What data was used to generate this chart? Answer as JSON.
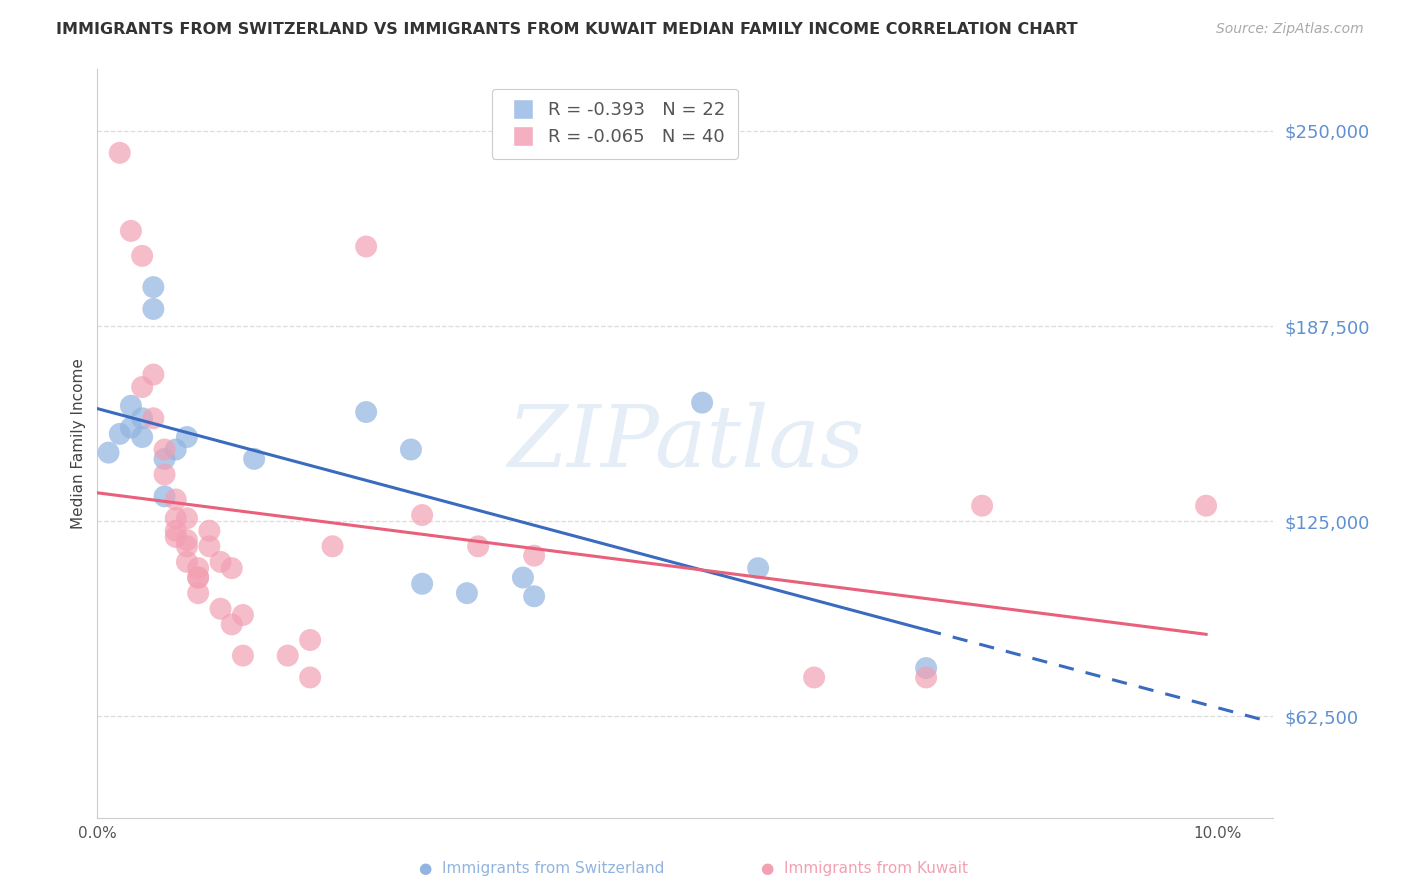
{
  "title": "IMMIGRANTS FROM SWITZERLAND VS IMMIGRANTS FROM KUWAIT MEDIAN FAMILY INCOME CORRELATION CHART",
  "source": "Source: ZipAtlas.com",
  "ylabel": "Median Family Income",
  "xlim": [
    0.0,
    0.105
  ],
  "ylim": [
    30000,
    270000
  ],
  "ytick_positions": [
    62500,
    125000,
    187500,
    250000
  ],
  "ytick_labels": [
    "$62,500",
    "$125,000",
    "$187,500",
    "$250,000"
  ],
  "xtick_positions": [
    0.0,
    0.02,
    0.04,
    0.06,
    0.08,
    0.1
  ],
  "xtick_labels": [
    "0.0%",
    "",
    "",
    "",
    "",
    "10.0%"
  ],
  "switzerland_color": "#92b4e0",
  "kuwait_color": "#f2a0b2",
  "trendline_switzerland_color": "#3a6bbf",
  "trendline_kuwait_color": "#e8607a",
  "watermark": "ZIPatlas",
  "background_color": "#ffffff",
  "grid_color": "#dddddd",
  "ytick_label_color": "#6090d0",
  "legend_sw_color": "#a8c4e8",
  "legend_kw_color": "#f4afc0",
  "legend_sw_label": "R = -0.393   N = 22",
  "legend_kw_label": "R = -0.065   N = 40",
  "bottom_legend_sw": "Immigrants from Switzerland",
  "bottom_legend_kw": "Immigrants from Kuwait",
  "switzerland_points": [
    [
      0.001,
      147000
    ],
    [
      0.002,
      153000
    ],
    [
      0.003,
      155000
    ],
    [
      0.003,
      162000
    ],
    [
      0.004,
      152000
    ],
    [
      0.004,
      158000
    ],
    [
      0.005,
      200000
    ],
    [
      0.005,
      193000
    ],
    [
      0.006,
      145000
    ],
    [
      0.006,
      133000
    ],
    [
      0.007,
      148000
    ],
    [
      0.008,
      152000
    ],
    [
      0.014,
      145000
    ],
    [
      0.024,
      160000
    ],
    [
      0.028,
      148000
    ],
    [
      0.029,
      105000
    ],
    [
      0.033,
      102000
    ],
    [
      0.038,
      107000
    ],
    [
      0.039,
      101000
    ],
    [
      0.054,
      163000
    ],
    [
      0.059,
      110000
    ],
    [
      0.074,
      78000
    ]
  ],
  "kuwait_points": [
    [
      0.002,
      243000
    ],
    [
      0.003,
      218000
    ],
    [
      0.004,
      210000
    ],
    [
      0.004,
      168000
    ],
    [
      0.005,
      172000
    ],
    [
      0.005,
      158000
    ],
    [
      0.006,
      148000
    ],
    [
      0.006,
      140000
    ],
    [
      0.007,
      132000
    ],
    [
      0.007,
      126000
    ],
    [
      0.007,
      122000
    ],
    [
      0.007,
      120000
    ],
    [
      0.008,
      126000
    ],
    [
      0.008,
      119000
    ],
    [
      0.008,
      117000
    ],
    [
      0.008,
      112000
    ],
    [
      0.009,
      110000
    ],
    [
      0.009,
      107000
    ],
    [
      0.009,
      107000
    ],
    [
      0.009,
      102000
    ],
    [
      0.01,
      122000
    ],
    [
      0.01,
      117000
    ],
    [
      0.011,
      112000
    ],
    [
      0.011,
      97000
    ],
    [
      0.012,
      110000
    ],
    [
      0.012,
      92000
    ],
    [
      0.013,
      95000
    ],
    [
      0.013,
      82000
    ],
    [
      0.017,
      82000
    ],
    [
      0.019,
      87000
    ],
    [
      0.019,
      75000
    ],
    [
      0.021,
      117000
    ],
    [
      0.024,
      213000
    ],
    [
      0.029,
      127000
    ],
    [
      0.034,
      117000
    ],
    [
      0.039,
      114000
    ],
    [
      0.064,
      75000
    ],
    [
      0.074,
      75000
    ],
    [
      0.079,
      130000
    ],
    [
      0.099,
      130000
    ]
  ],
  "sw_trendline_x0": 0.0,
  "sw_trendline_x_solid_end": 0.074,
  "sw_trendline_x_dashed_end": 0.104,
  "kw_trendline_x0": 0.0,
  "kw_trendline_x_end": 0.099
}
